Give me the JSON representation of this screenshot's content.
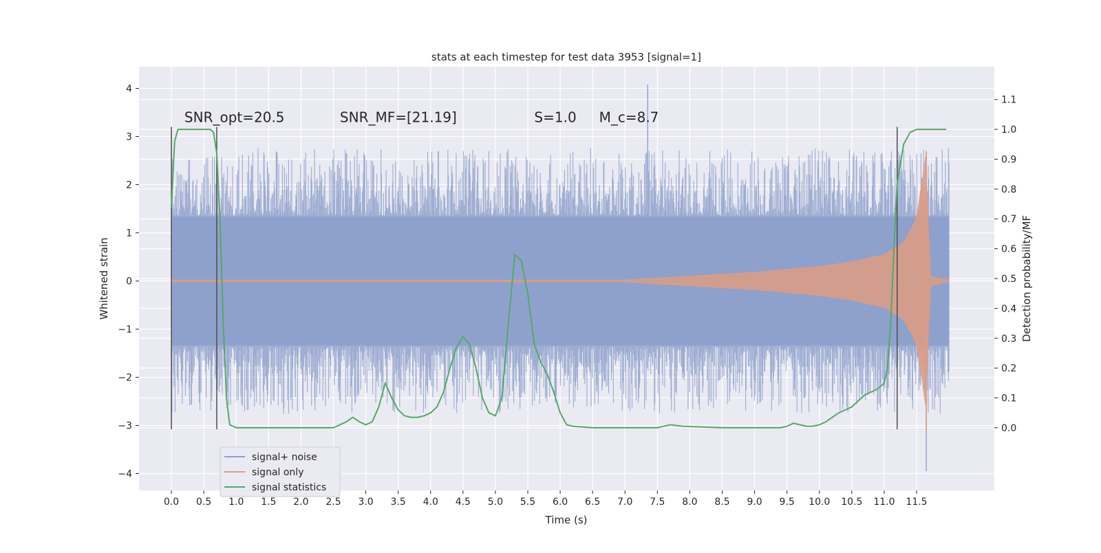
{
  "chart_data": {
    "type": "line",
    "title": "stats at each timestep for test data 3953 [signal=1]",
    "xlabel": "Time (s)",
    "ylabel_left": "Whitened strain",
    "ylabel_right": "Detection probability/MF",
    "xlim": [
      -0.5,
      12.7
    ],
    "ylim_left": [
      -4.35,
      4.45
    ],
    "ylim_right": [
      -0.21,
      1.21
    ],
    "x_ticks": [
      0.0,
      0.5,
      1.0,
      1.5,
      2.0,
      2.5,
      3.0,
      3.5,
      4.0,
      4.5,
      5.0,
      5.5,
      6.0,
      6.5,
      7.0,
      7.5,
      8.0,
      8.5,
      9.0,
      9.5,
      10.0,
      10.5,
      11.0,
      11.5
    ],
    "x_tick_labels": [
      "0.0",
      "0.5",
      "1.0",
      "1.5",
      "2.0",
      "2.5",
      "3.0",
      "3.5",
      "4.0",
      "4.5",
      "5.0",
      "5.5",
      "6.0",
      "6.5",
      "7.0",
      "7.5",
      "8.0",
      "8.5",
      "9.0",
      "9.5",
      "10.0",
      "10.5",
      "11.0",
      "11.5"
    ],
    "y_left_ticks": [
      -4,
      -3,
      -2,
      -1,
      0,
      1,
      2,
      3,
      4
    ],
    "y_left_tick_labels": [
      "−4",
      "−3",
      "−2",
      "−1",
      "0",
      "1",
      "2",
      "3",
      "4"
    ],
    "y_right_ticks": [
      0.0,
      0.1,
      0.2,
      0.3,
      0.4,
      0.5,
      0.6,
      0.7,
      0.8,
      0.9,
      1.0,
      1.1
    ],
    "y_right_tick_labels": [
      "0.0",
      "0.1",
      "0.2",
      "0.3",
      "0.4",
      "0.5",
      "0.6",
      "0.7",
      "0.8",
      "0.9",
      "1.0",
      "1.1"
    ],
    "grid": true,
    "legend_position": "lower-left",
    "annotations": [
      {
        "name": "snr-opt",
        "text": "SNR_opt=20.5",
        "x": 0.2,
        "y": 3.3
      },
      {
        "name": "snr-mf",
        "text": "SNR_MF=[21.19]",
        "x": 2.6,
        "y": 3.3
      },
      {
        "name": "s-value",
        "text": "S=1.0",
        "x": 5.6,
        "y": 3.3
      },
      {
        "name": "chirp-mass",
        "text": "M_c=8.7",
        "x": 6.6,
        "y": 3.3
      }
    ],
    "markers_x": [
      0.0,
      0.7,
      11.2
    ],
    "marker_y_range": [
      -3.08,
      3.2
    ],
    "series": [
      {
        "name": "signal+ noise",
        "axis": "left",
        "style": "dense noisy strain band",
        "x_range": [
          0.0,
          12.0
        ],
        "typical_range": [
          -2.0,
          2.0
        ],
        "min": -3.95,
        "max": 4.08,
        "color": "#8da0cb"
      },
      {
        "name": "signal only",
        "axis": "left",
        "style": "chirp envelope",
        "envelope_x": [
          7.0,
          8.0,
          9.0,
          10.0,
          10.5,
          11.0,
          11.3,
          11.5,
          11.6,
          11.65,
          11.7,
          12.0
        ],
        "envelope_amplitude": [
          0.02,
          0.1,
          0.18,
          0.3,
          0.4,
          0.55,
          0.8,
          1.3,
          2.2,
          2.7,
          0.1,
          0.02
        ],
        "color": "#e19c7f"
      },
      {
        "name": "signal statistics",
        "axis": "right",
        "color": "#55a868",
        "x": [
          0.0,
          0.05,
          0.1,
          0.2,
          0.3,
          0.5,
          0.6,
          0.65,
          0.7,
          0.75,
          0.8,
          0.85,
          0.9,
          1.0,
          1.5,
          2.0,
          2.5,
          2.6,
          2.7,
          2.8,
          2.9,
          3.0,
          3.1,
          3.2,
          3.3,
          3.4,
          3.5,
          3.6,
          3.7,
          3.8,
          3.9,
          4.0,
          4.1,
          4.2,
          4.3,
          4.4,
          4.5,
          4.6,
          4.7,
          4.8,
          4.9,
          5.0,
          5.1,
          5.2,
          5.3,
          5.4,
          5.5,
          5.6,
          5.7,
          5.8,
          5.9,
          6.0,
          6.1,
          6.2,
          6.5,
          7.0,
          7.5,
          7.7,
          7.9,
          8.5,
          9.0,
          9.4,
          9.5,
          9.6,
          9.7,
          9.8,
          9.9,
          10.0,
          10.1,
          10.2,
          10.3,
          10.4,
          10.5,
          10.6,
          10.7,
          10.8,
          10.9,
          11.0,
          11.05,
          11.1,
          11.15,
          11.2,
          11.3,
          11.4,
          11.5,
          11.7,
          11.8,
          11.9,
          11.95
        ],
        "y": [
          0.74,
          0.96,
          1.0,
          1.0,
          1.0,
          1.0,
          1.0,
          0.99,
          0.92,
          0.7,
          0.35,
          0.1,
          0.01,
          0.0,
          0.0,
          0.0,
          0.0,
          0.01,
          0.02,
          0.035,
          0.02,
          0.01,
          0.02,
          0.07,
          0.15,
          0.1,
          0.06,
          0.04,
          0.035,
          0.035,
          0.04,
          0.05,
          0.07,
          0.12,
          0.2,
          0.27,
          0.305,
          0.28,
          0.2,
          0.1,
          0.05,
          0.04,
          0.1,
          0.35,
          0.58,
          0.56,
          0.45,
          0.28,
          0.22,
          0.18,
          0.12,
          0.05,
          0.01,
          0.005,
          0.0,
          0.0,
          0.0,
          0.01,
          0.005,
          0.0,
          0.0,
          0.0,
          0.005,
          0.015,
          0.01,
          0.005,
          0.005,
          0.01,
          0.02,
          0.035,
          0.05,
          0.06,
          0.07,
          0.09,
          0.11,
          0.12,
          0.13,
          0.15,
          0.2,
          0.35,
          0.6,
          0.82,
          0.95,
          0.99,
          1.0,
          1.0,
          1.0,
          1.0,
          1.0
        ]
      }
    ]
  }
}
